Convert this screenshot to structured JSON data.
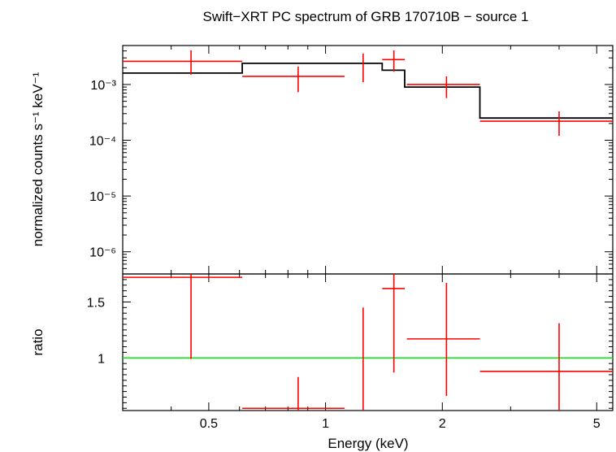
{
  "chart_data": [
    {
      "type": "scatter",
      "title": "Swift−XRT PC spectrum of GRB 170710B − source 1",
      "ylabel": "normalized counts s⁻¹ keV⁻¹",
      "xlabel": "",
      "xscale": "log",
      "yscale": "log",
      "xlim": [
        0.3,
        5.5
      ],
      "ylim": [
        4e-07,
        0.005
      ],
      "ytick_labels": [
        "10⁻³",
        "10⁻⁴",
        "10⁻⁵",
        "10⁻⁶"
      ],
      "ytick_values": [
        0.001,
        0.0001,
        1e-05,
        1e-06
      ],
      "grid": false,
      "series": [
        {
          "kind": "data",
          "color": "#ff0000",
          "points": [
            {
              "x": 0.45,
              "xlo": 0.3,
              "xhi": 0.61,
              "y": 0.0026,
              "ylo": 0.0015,
              "yhi": 0.0041
            },
            {
              "x": 0.85,
              "xlo": 0.61,
              "xhi": 1.12,
              "y": 0.0014,
              "ylo": 0.00073,
              "yhi": 0.0021
            },
            {
              "x": 1.25,
              "xlo": 1.25,
              "xhi": 1.25,
              "y": 0.0025,
              "ylo": 0.0011,
              "yhi": 0.0036
            },
            {
              "x": 1.5,
              "xlo": 1.4,
              "xhi": 1.6,
              "y": 0.0028,
              "ylo": 0.0017,
              "yhi": 0.0041
            },
            {
              "x": 2.05,
              "xlo": 1.62,
              "xhi": 2.5,
              "y": 0.001,
              "ylo": 0.00057,
              "yhi": 0.0014
            },
            {
              "x": 4.0,
              "xlo": 2.5,
              "xhi": 5.5,
              "y": 0.00022,
              "ylo": 0.00012,
              "yhi": 0.00033
            }
          ]
        },
        {
          "kind": "model",
          "color": "#000000",
          "steps": [
            {
              "xlo": 0.3,
              "xhi": 0.61,
              "y": 0.0016
            },
            {
              "xlo": 0.61,
              "xhi": 1.4,
              "y": 0.0024
            },
            {
              "xlo": 1.4,
              "xhi": 1.6,
              "y": 0.0018
            },
            {
              "xlo": 1.6,
              "xhi": 2.5,
              "y": 0.0009
            },
            {
              "xlo": 2.5,
              "xhi": 5.5,
              "y": 0.00025
            }
          ]
        }
      ]
    },
    {
      "type": "scatter",
      "xlabel": "Energy (keV)",
      "ylabel": "ratio",
      "xscale": "log",
      "xlim": [
        0.3,
        5.5
      ],
      "ylim": [
        0.53,
        1.75
      ],
      "xtick_labels": [
        "0.5",
        "1",
        "2",
        "5"
      ],
      "xtick_values": [
        0.5,
        1,
        2,
        5
      ],
      "ytick_labels": [
        "1.5",
        "1"
      ],
      "ytick_values": [
        1.5,
        1.0
      ],
      "reference_line": {
        "y": 1.0,
        "color": "#00ee00"
      },
      "series": [
        {
          "kind": "ratio",
          "color": "#ff0000",
          "points": [
            {
              "x": 0.45,
              "xlo": 0.3,
              "xhi": 0.61,
              "y": 1.72,
              "ylo": 0.99,
              "yhi": 1.75
            },
            {
              "x": 0.85,
              "xlo": 0.61,
              "xhi": 1.12,
              "y": 0.55,
              "ylo": 0.53,
              "yhi": 0.83
            },
            {
              "x": 1.25,
              "xlo": 1.25,
              "xhi": 1.25,
              "y": 0.9,
              "ylo": 0.53,
              "yhi": 1.45
            },
            {
              "x": 1.5,
              "xlo": 1.4,
              "xhi": 1.6,
              "y": 1.62,
              "ylo": 0.87,
              "yhi": 1.75
            },
            {
              "x": 2.05,
              "xlo": 1.62,
              "xhi": 2.5,
              "y": 1.17,
              "ylo": 0.66,
              "yhi": 1.67
            },
            {
              "x": 4.0,
              "xlo": 2.5,
              "xhi": 5.5,
              "y": 0.88,
              "ylo": 0.53,
              "yhi": 1.31
            }
          ]
        }
      ]
    }
  ]
}
